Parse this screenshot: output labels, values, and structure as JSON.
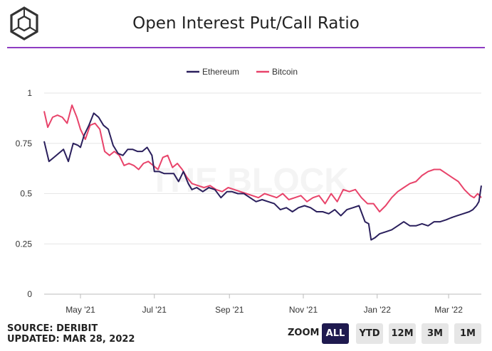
{
  "title": "Open Interest Put/Call Ratio",
  "watermark": "THE BLOCK",
  "source": "SOURCE: DERIBIT",
  "updated": "UPDATED: MAR 28, 2022",
  "zoom": {
    "label": "ZOOM",
    "buttons": [
      "ALL",
      "YTD",
      "12M",
      "3M",
      "1M"
    ],
    "selected": "ALL"
  },
  "colors": {
    "ethereum": "#2a1f5c",
    "bitcoin": "#e8436a",
    "accent": "#8e3cc2"
  },
  "chart_data": {
    "type": "line",
    "title": "Open Interest Put/Call Ratio",
    "xlabel": "",
    "ylabel": "",
    "ylim": [
      0,
      1
    ],
    "yticks": [
      "0",
      "0.25",
      "0.5",
      "0.75",
      "1"
    ],
    "xticks": [
      "May '21",
      "Jul '21",
      "Sep '21",
      "Nov '21",
      "Jan '22",
      "Mar '22"
    ],
    "grid": true,
    "legend": "top-center",
    "series": [
      {
        "name": "Ethereum",
        "x": [
          "2021-04-01",
          "2021-04-05",
          "2021-04-09",
          "2021-04-13",
          "2021-04-17",
          "2021-04-21",
          "2021-04-25",
          "2021-04-29",
          "2021-05-01",
          "2021-05-04",
          "2021-05-08",
          "2021-05-12",
          "2021-05-16",
          "2021-05-20",
          "2021-05-24",
          "2021-05-28",
          "2021-06-01",
          "2021-06-05",
          "2021-06-09",
          "2021-06-13",
          "2021-06-17",
          "2021-06-21",
          "2021-06-25",
          "2021-06-29",
          "2021-07-01",
          "2021-07-05",
          "2021-07-09",
          "2021-07-13",
          "2021-07-17",
          "2021-07-21",
          "2021-07-25",
          "2021-07-29",
          "2021-08-01",
          "2021-08-05",
          "2021-08-10",
          "2021-08-15",
          "2021-08-20",
          "2021-08-25",
          "2021-08-30",
          "2021-09-03",
          "2021-09-08",
          "2021-09-13",
          "2021-09-18",
          "2021-09-23",
          "2021-09-28",
          "2021-10-03",
          "2021-10-08",
          "2021-10-13",
          "2021-10-18",
          "2021-10-23",
          "2021-10-28",
          "2021-11-02",
          "2021-11-07",
          "2021-11-12",
          "2021-11-17",
          "2021-11-22",
          "2021-11-27",
          "2021-12-02",
          "2021-12-07",
          "2021-12-12",
          "2021-12-17",
          "2021-12-22",
          "2021-12-25",
          "2021-12-27",
          "2021-12-30",
          "2022-01-03",
          "2022-01-08",
          "2022-01-13",
          "2022-01-18",
          "2022-01-23",
          "2022-01-28",
          "2022-02-02",
          "2022-02-07",
          "2022-02-12",
          "2022-02-17",
          "2022-02-22",
          "2022-02-27",
          "2022-03-03",
          "2022-03-08",
          "2022-03-13",
          "2022-03-18",
          "2022-03-21",
          "2022-03-24",
          "2022-03-26",
          "2022-03-28"
        ],
        "values": [
          0.76,
          0.66,
          0.68,
          0.7,
          0.72,
          0.66,
          0.75,
          0.74,
          0.73,
          0.79,
          0.84,
          0.9,
          0.88,
          0.84,
          0.82,
          0.74,
          0.7,
          0.69,
          0.72,
          0.72,
          0.71,
          0.71,
          0.73,
          0.69,
          0.61,
          0.61,
          0.6,
          0.6,
          0.6,
          0.56,
          0.61,
          0.55,
          0.52,
          0.53,
          0.51,
          0.53,
          0.52,
          0.48,
          0.51,
          0.51,
          0.5,
          0.5,
          0.48,
          0.46,
          0.47,
          0.46,
          0.45,
          0.42,
          0.43,
          0.41,
          0.43,
          0.44,
          0.43,
          0.41,
          0.41,
          0.4,
          0.42,
          0.39,
          0.42,
          0.43,
          0.44,
          0.36,
          0.35,
          0.27,
          0.28,
          0.3,
          0.31,
          0.32,
          0.34,
          0.36,
          0.34,
          0.34,
          0.35,
          0.34,
          0.36,
          0.36,
          0.37,
          0.38,
          0.39,
          0.4,
          0.41,
          0.42,
          0.44,
          0.46,
          0.54
        ]
      },
      {
        "name": "Bitcoin",
        "x": [
          "2021-04-01",
          "2021-04-04",
          "2021-04-08",
          "2021-04-12",
          "2021-04-16",
          "2021-04-20",
          "2021-04-24",
          "2021-04-28",
          "2021-05-01",
          "2021-05-05",
          "2021-05-09",
          "2021-05-13",
          "2021-05-17",
          "2021-05-21",
          "2021-05-25",
          "2021-05-29",
          "2021-06-02",
          "2021-06-06",
          "2021-06-10",
          "2021-06-14",
          "2021-06-18",
          "2021-06-22",
          "2021-06-26",
          "2021-06-30",
          "2021-07-04",
          "2021-07-08",
          "2021-07-12",
          "2021-07-16",
          "2021-07-20",
          "2021-07-24",
          "2021-07-28",
          "2021-08-01",
          "2021-08-06",
          "2021-08-11",
          "2021-08-16",
          "2021-08-21",
          "2021-08-26",
          "2021-08-31",
          "2021-09-05",
          "2021-09-10",
          "2021-09-15",
          "2021-09-20",
          "2021-09-25",
          "2021-09-30",
          "2021-10-05",
          "2021-10-10",
          "2021-10-15",
          "2021-10-20",
          "2021-10-25",
          "2021-10-30",
          "2021-11-04",
          "2021-11-09",
          "2021-11-14",
          "2021-11-19",
          "2021-11-24",
          "2021-11-29",
          "2021-12-04",
          "2021-12-09",
          "2021-12-14",
          "2021-12-19",
          "2021-12-24",
          "2021-12-29",
          "2022-01-03",
          "2022-01-08",
          "2022-01-13",
          "2022-01-18",
          "2022-01-23",
          "2022-01-28",
          "2022-02-02",
          "2022-02-07",
          "2022-02-12",
          "2022-02-17",
          "2022-02-22",
          "2022-02-27",
          "2022-03-04",
          "2022-03-09",
          "2022-03-14",
          "2022-03-19",
          "2022-03-22",
          "2022-03-25",
          "2022-03-28"
        ],
        "values": [
          0.91,
          0.83,
          0.88,
          0.89,
          0.88,
          0.85,
          0.94,
          0.88,
          0.82,
          0.77,
          0.84,
          0.85,
          0.82,
          0.71,
          0.69,
          0.71,
          0.69,
          0.64,
          0.65,
          0.64,
          0.62,
          0.65,
          0.66,
          0.64,
          0.62,
          0.68,
          0.69,
          0.63,
          0.65,
          0.62,
          0.58,
          0.55,
          0.54,
          0.53,
          0.54,
          0.52,
          0.51,
          0.53,
          0.52,
          0.51,
          0.5,
          0.49,
          0.48,
          0.5,
          0.49,
          0.48,
          0.5,
          0.47,
          0.48,
          0.49,
          0.46,
          0.48,
          0.49,
          0.45,
          0.5,
          0.46,
          0.52,
          0.51,
          0.52,
          0.48,
          0.45,
          0.45,
          0.41,
          0.44,
          0.48,
          0.51,
          0.53,
          0.55,
          0.56,
          0.59,
          0.61,
          0.62,
          0.62,
          0.6,
          0.58,
          0.56,
          0.52,
          0.49,
          0.48,
          0.5,
          0.48
        ]
      }
    ]
  }
}
